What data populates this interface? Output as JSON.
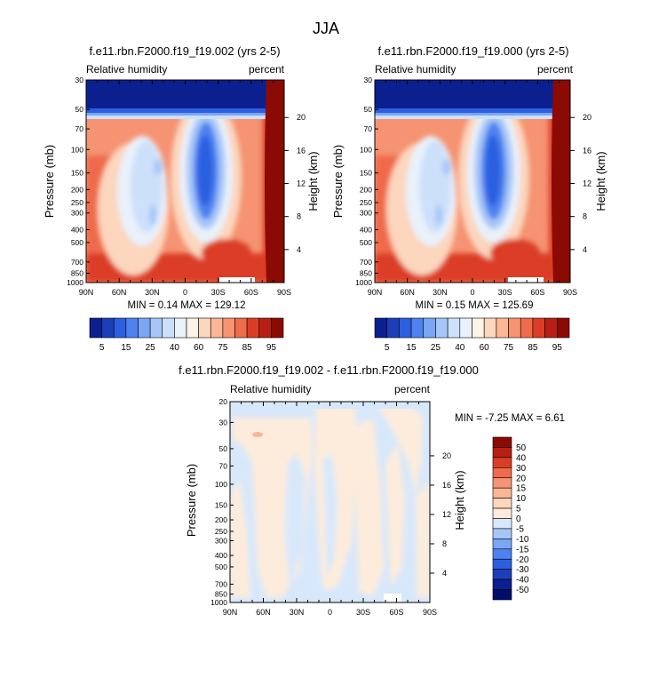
{
  "figure_title": "JJA",
  "chart_data": [
    {
      "type": "heatmap",
      "title": "f.e11.rbn.F2000.f19_f19.002 (yrs 2-5)",
      "left_string": "Relative humidity",
      "right_string": "percent",
      "xlabel": "",
      "ylabel": "Pressure (mb)",
      "ylabel_right": "Height (km)",
      "x_ticks": [
        "90N",
        "60N",
        "30N",
        "0",
        "30S",
        "60S",
        "90S"
      ],
      "x_range": [
        90,
        -90
      ],
      "y_ticks": [
        1000,
        850,
        700,
        500,
        400,
        300,
        250,
        200,
        150,
        100,
        70,
        50,
        30
      ],
      "y_scale": "log-pressure",
      "y_range": [
        1000,
        30
      ],
      "height_ticks": [
        4,
        8,
        12,
        16,
        20
      ],
      "stats": "MIN =  0.14  MAX = 129.12",
      "legend": {
        "placement": "bottom",
        "levels": [
          5,
          10,
          15,
          20,
          25,
          30,
          40,
          50,
          60,
          70,
          75,
          80,
          85,
          90,
          95
        ],
        "labels": [
          "5",
          "15",
          "25",
          "40",
          "60",
          "75",
          "85",
          "95"
        ],
        "colors": [
          "#0b1f8f",
          "#1a3fb8",
          "#2c5fe0",
          "#4d82f0",
          "#7aa6f5",
          "#a7c6f8",
          "#cde0fa",
          "#e9f1fb",
          "#fff2e6",
          "#fcd6bd",
          "#f9b796",
          "#f59372",
          "#ef6b4c",
          "#dc3d27",
          "#b81f12",
          "#8c0a04"
        ]
      }
    },
    {
      "type": "heatmap",
      "title": "f.e11.rbn.F2000.f19_f19.000 (yrs 2-5)",
      "left_string": "Relative humidity",
      "right_string": "percent",
      "xlabel": "",
      "ylabel": "Pressure (mb)",
      "ylabel_right": "Height (km)",
      "x_ticks": [
        "90N",
        "60N",
        "30N",
        "0",
        "30S",
        "60S",
        "90S"
      ],
      "x_range": [
        90,
        -90
      ],
      "y_ticks": [
        1000,
        850,
        700,
        500,
        400,
        300,
        250,
        200,
        150,
        100,
        70,
        50,
        30
      ],
      "y_scale": "log-pressure",
      "y_range": [
        1000,
        30
      ],
      "height_ticks": [
        4,
        8,
        12,
        16,
        20
      ],
      "stats": "MIN =  0.15  MAX = 125.69",
      "legend": {
        "placement": "bottom",
        "levels": [
          5,
          10,
          15,
          20,
          25,
          30,
          40,
          50,
          60,
          70,
          75,
          80,
          85,
          90,
          95
        ],
        "labels": [
          "5",
          "15",
          "25",
          "40",
          "60",
          "75",
          "85",
          "95"
        ],
        "colors": [
          "#0b1f8f",
          "#1a3fb8",
          "#2c5fe0",
          "#4d82f0",
          "#7aa6f5",
          "#a7c6f8",
          "#cde0fa",
          "#e9f1fb",
          "#fff2e6",
          "#fcd6bd",
          "#f9b796",
          "#f59372",
          "#ef6b4c",
          "#dc3d27",
          "#b81f12",
          "#8c0a04"
        ]
      }
    },
    {
      "type": "heatmap",
      "title": "f.e11.rbn.F2000.f19_f19.002 - f.e11.rbn.F2000.f19_f19.000",
      "left_string": "Relative humidity",
      "right_string": "percent",
      "xlabel": "",
      "ylabel": "Pressure (mb)",
      "ylabel_right": "Height (km)",
      "x_ticks": [
        "90N",
        "60N",
        "30N",
        "0",
        "30S",
        "60S",
        "90S"
      ],
      "x_range": [
        90,
        -90
      ],
      "y_ticks": [
        1000,
        850,
        700,
        500,
        400,
        300,
        250,
        200,
        150,
        100,
        70,
        50,
        30,
        20
      ],
      "y_scale": "log-pressure",
      "y_range": [
        1000,
        20
      ],
      "height_ticks": [
        4,
        8,
        12,
        16,
        20
      ],
      "stats": "MIN = -7.25  MAX =  6.61",
      "legend": {
        "placement": "right",
        "labels": [
          "50",
          "40",
          "30",
          "20",
          "15",
          "10",
          "5",
          "0",
          "-5",
          "-10",
          "-15",
          "-20",
          "-30",
          "-40",
          "-50"
        ],
        "colors": [
          "#8c0a04",
          "#b81f12",
          "#dc3d27",
          "#ef6b4c",
          "#f59372",
          "#f9b796",
          "#fcd6bd",
          "#fdecdc",
          "#d8e8fb",
          "#a7c6f8",
          "#7aa6f5",
          "#4d82f0",
          "#2c5fe0",
          "#1a3fb8",
          "#0b1f8f",
          "#000e6b"
        ]
      }
    }
  ]
}
